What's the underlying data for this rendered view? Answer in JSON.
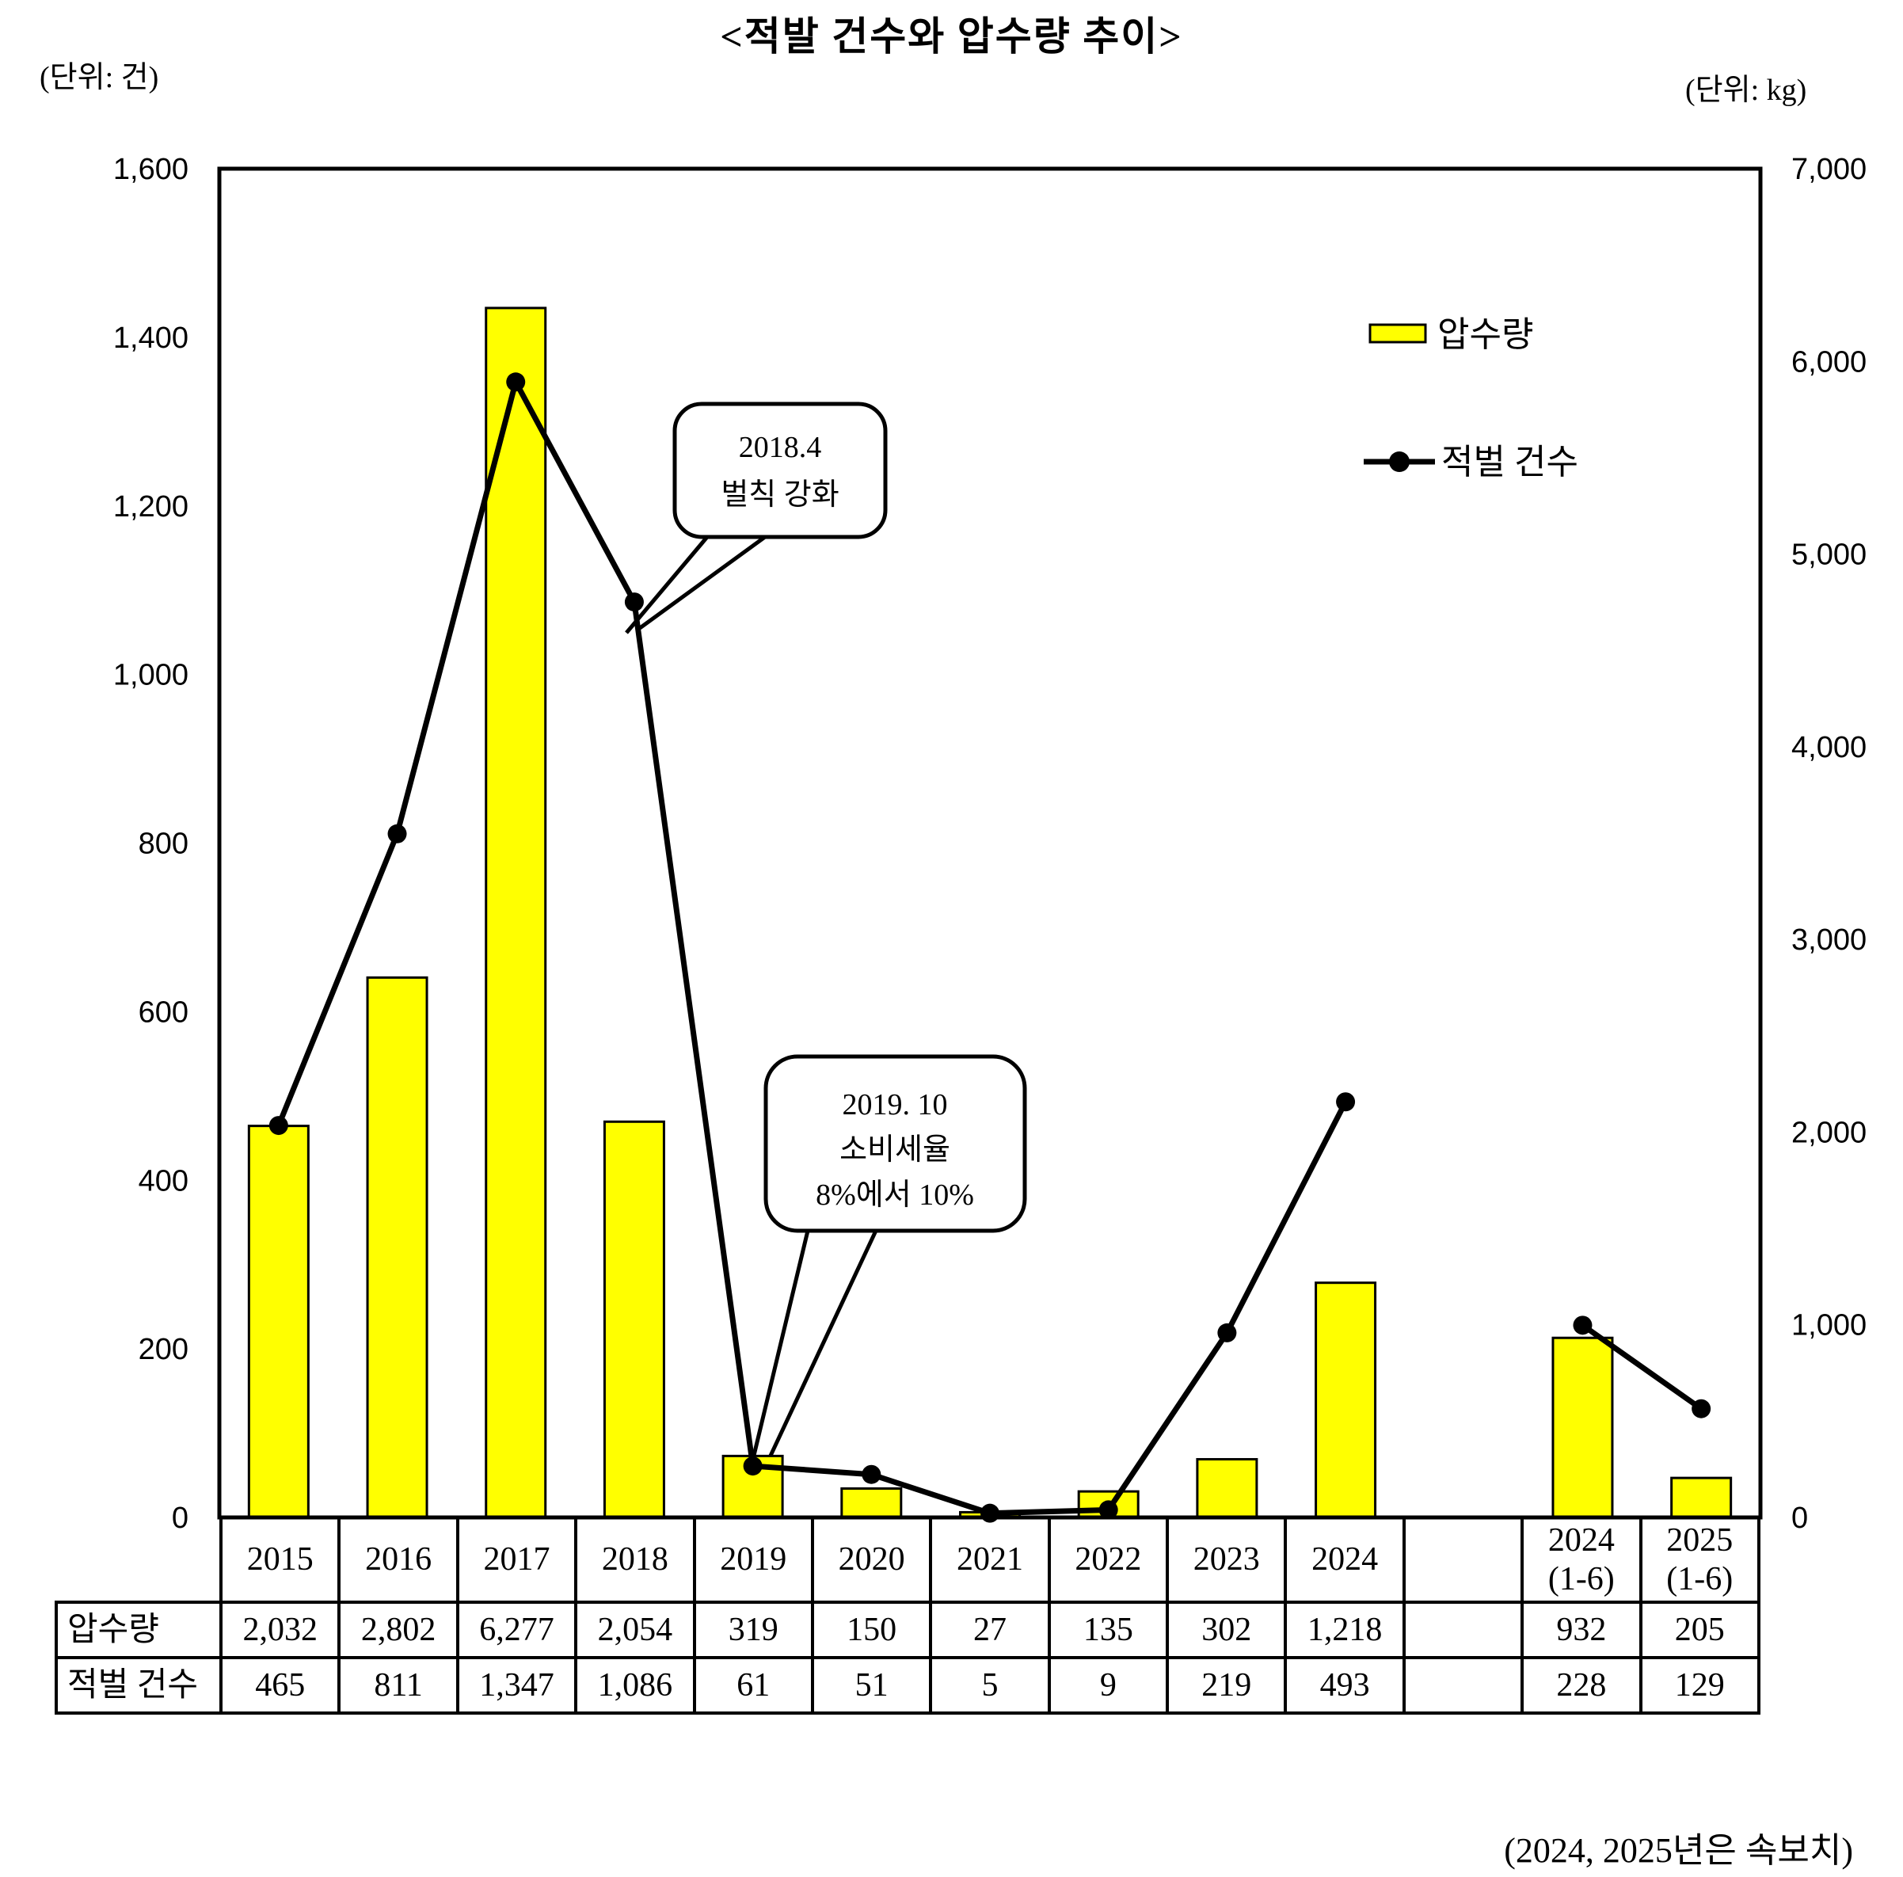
{
  "title": "<적발 건수와 압수량 추이>",
  "unit_left": "(단위: 건)",
  "unit_right": "(단위: kg)",
  "footnote": "(2024, 2025년은 속보치)",
  "legend": {
    "bar_label": "압수량",
    "line_label": "적벌 건수"
  },
  "annotations": [
    {
      "lines": [
        "2018.4",
        "벌칙 강화"
      ]
    },
    {
      "lines": [
        "2019. 10",
        "소비세율",
        "8%에서 10%"
      ]
    }
  ],
  "table": {
    "row_headers": [
      "압수량",
      "적벌 건수"
    ],
    "categories_display": [
      "2015",
      "2016",
      "2017",
      "2018",
      "2019",
      "2020",
      "2021",
      "2022",
      "2023",
      "2024",
      "",
      "2024\n(1-6)",
      "2025\n(1-6)"
    ],
    "rows": [
      [
        "2,032",
        "2,802",
        "6,277",
        "2,054",
        "319",
        "150",
        "27",
        "135",
        "302",
        "1,218",
        "",
        "932",
        "205"
      ],
      [
        "465",
        "811",
        "1,347",
        "1,086",
        "61",
        "51",
        "5",
        "9",
        "219",
        "493",
        "",
        "228",
        "129"
      ]
    ]
  },
  "chart_data": {
    "type": "bar",
    "subtype": "combo-bar-line",
    "title": "<적발 건수와 압수량 추이>",
    "categories": [
      "2015",
      "2016",
      "2017",
      "2018",
      "2019",
      "2020",
      "2021",
      "2022",
      "2023",
      "2024",
      "",
      "2024 (1-6)",
      "2025 (1-6)"
    ],
    "series": [
      {
        "name": "압수량",
        "type": "bar",
        "axis": "right",
        "unit": "kg",
        "values": [
          2032,
          2802,
          6277,
          2054,
          319,
          150,
          27,
          135,
          302,
          1218,
          null,
          932,
          205
        ]
      },
      {
        "name": "적벌 건수",
        "type": "line",
        "axis": "left",
        "unit": "건",
        "values": [
          465,
          811,
          1347,
          1086,
          61,
          51,
          5,
          9,
          219,
          493,
          null,
          228,
          129
        ]
      }
    ],
    "left_axis": {
      "label": "(단위: 건)",
      "min": 0,
      "max": 1600,
      "step": 200,
      "tick_labels": [
        "1,600",
        "1,400",
        "1,200",
        "1,000",
        "800",
        "600",
        "400",
        "200",
        "0"
      ]
    },
    "right_axis": {
      "label": "(단위: kg)",
      "min": 0,
      "max": 7000,
      "step": 1000,
      "tick_labels": [
        "7,000",
        "6,000",
        "5,000",
        "4,000",
        "3,000",
        "2,000",
        "1,000",
        "0"
      ]
    },
    "legend_position": "inside-top-right",
    "grid": false,
    "colors": {
      "bar_fill": "#FFFF00",
      "line": "#000000",
      "border": "#000000"
    }
  }
}
